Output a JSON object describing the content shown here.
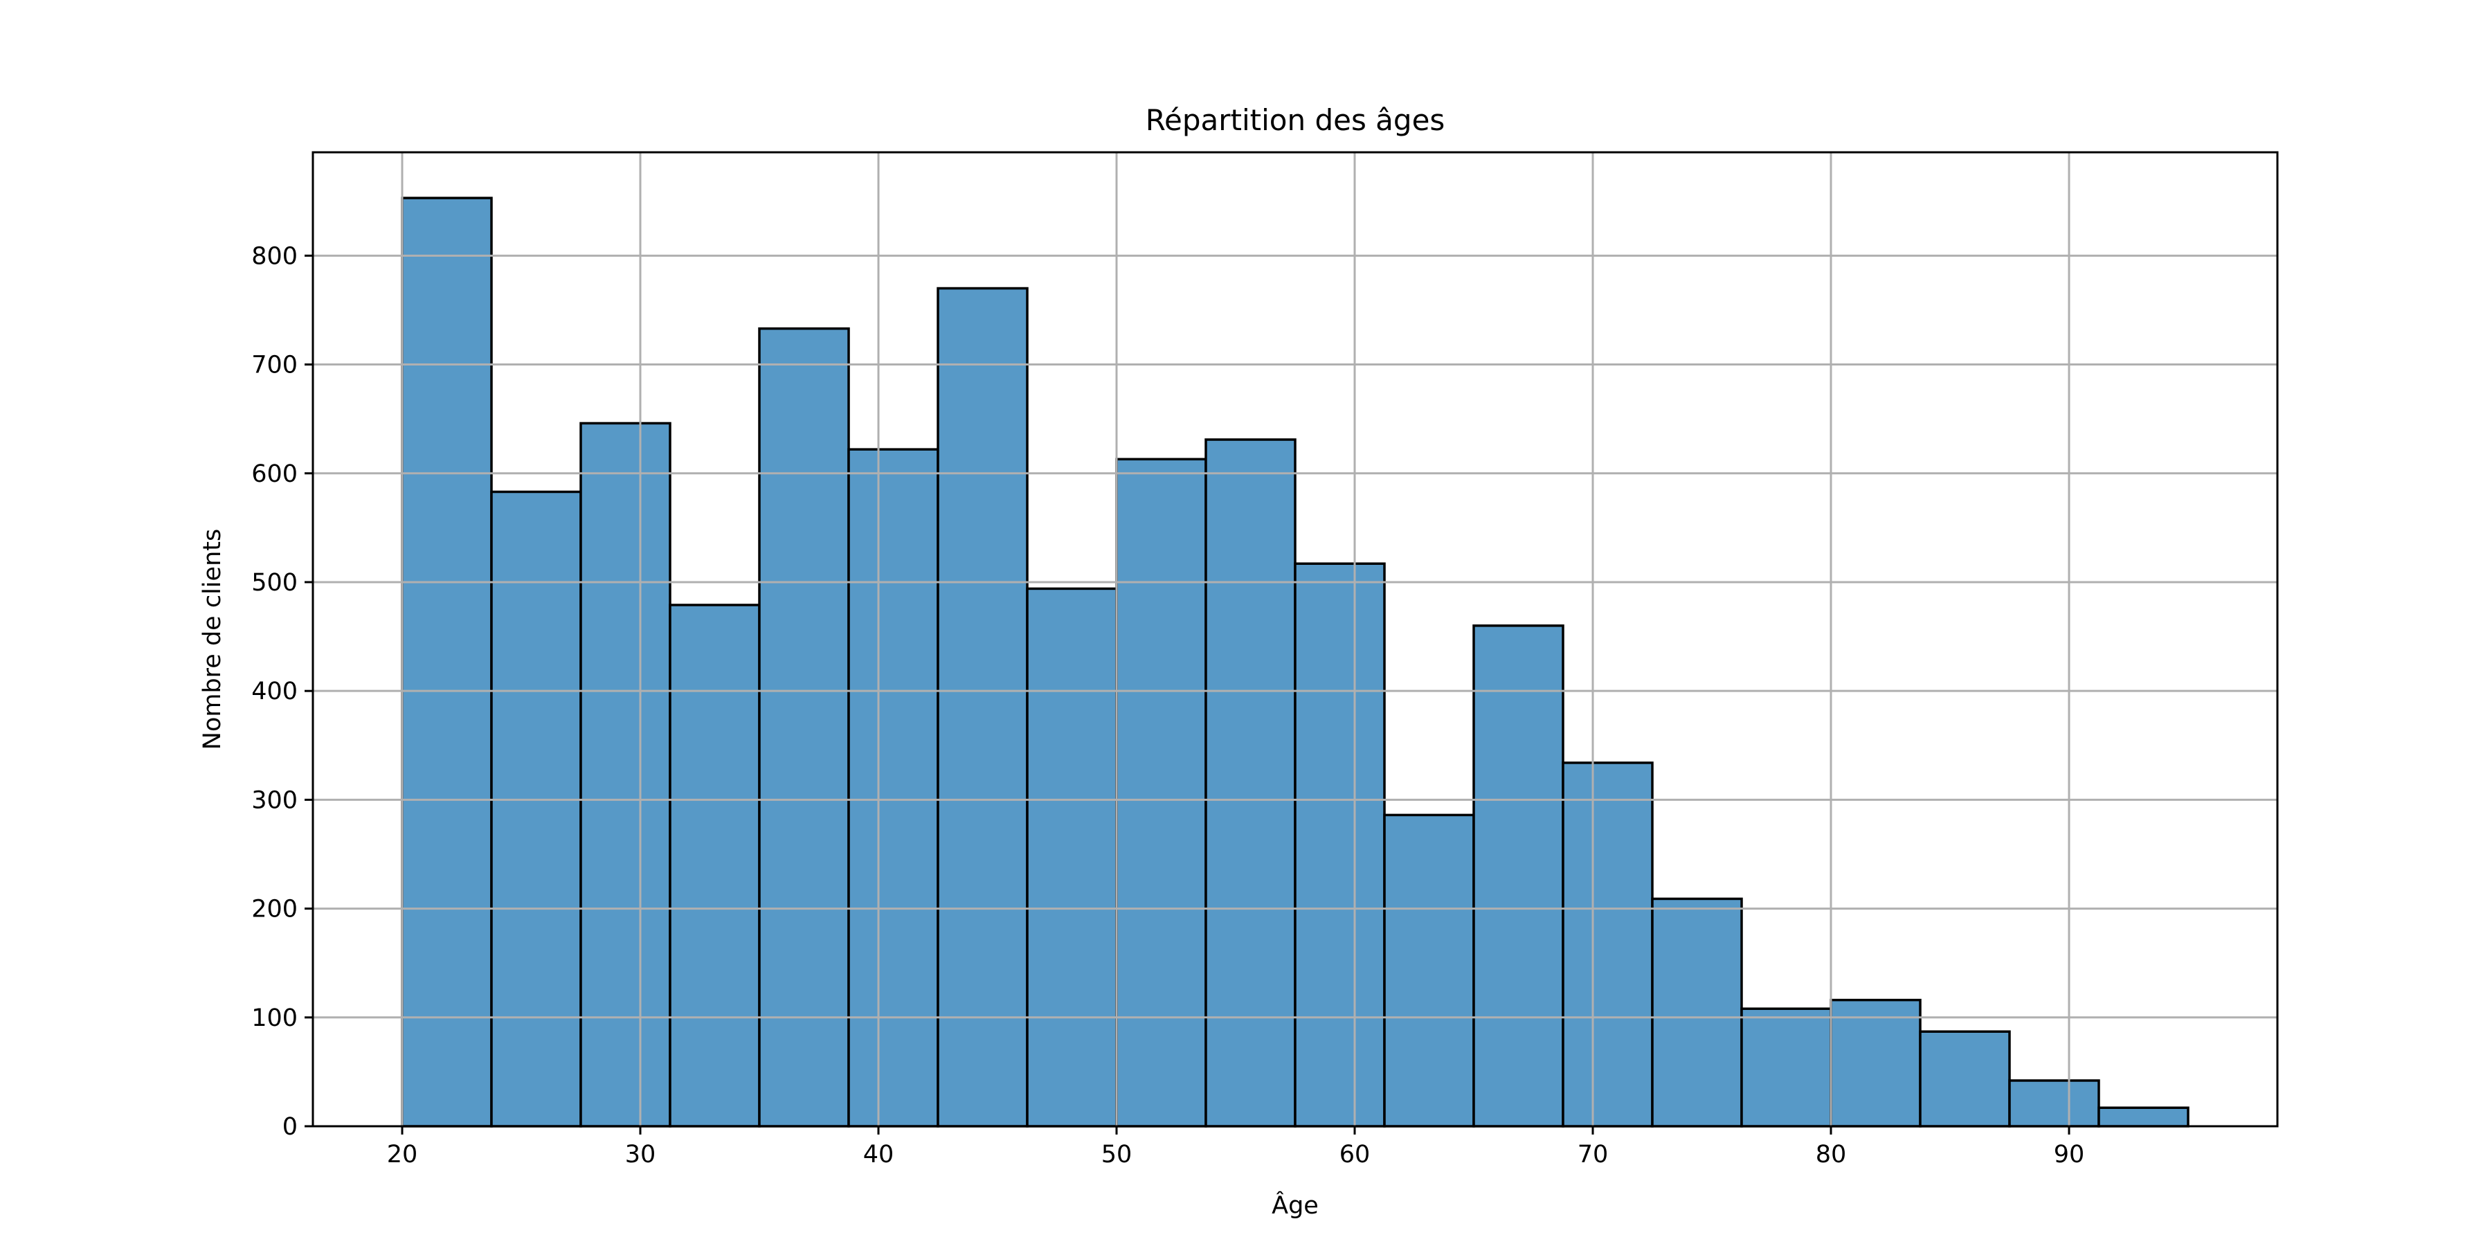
{
  "chart_data": {
    "type": "bar",
    "title": "Répartition des âges",
    "xlabel": "Âge",
    "ylabel": "Nombre de clients",
    "bin_edges": [
      20,
      23.75,
      27.5,
      31.25,
      35,
      38.75,
      42.5,
      46.25,
      50,
      53.75,
      57.5,
      61.25,
      65,
      68.75,
      72.5,
      76.25,
      80,
      83.75,
      87.5,
      91.25,
      95
    ],
    "values": [
      853,
      583,
      646,
      479,
      733,
      622,
      770,
      494,
      613,
      631,
      517,
      286,
      460,
      334,
      209,
      108,
      116,
      87,
      42,
      17
    ],
    "xlim": [
      16.25,
      98.75
    ],
    "ylim": [
      0,
      895
    ],
    "xticks": [
      20,
      30,
      40,
      50,
      60,
      70,
      80,
      90
    ],
    "yticks": [
      0,
      100,
      200,
      300,
      400,
      500,
      600,
      700,
      800
    ],
    "grid": true,
    "bar_color": "#5799c7",
    "edge_color": "#000000",
    "grid_color": "#b0b0b0"
  }
}
